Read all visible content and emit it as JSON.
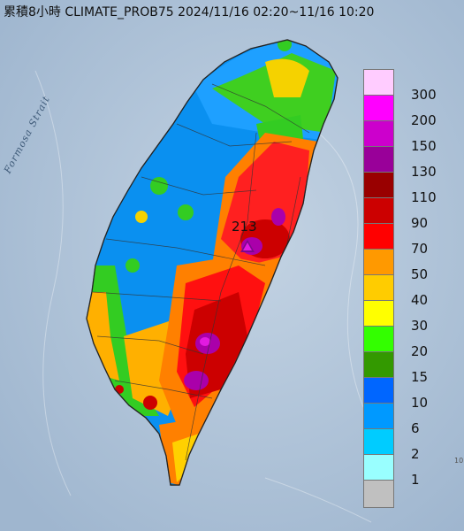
{
  "title": "累積8小時 CLIMATE_PROB75 2024/11/16 02:20~11/16 10:20",
  "strait_label": "Formosa Strait",
  "max_label": "213",
  "corner_mark": "10",
  "legend": [
    {
      "label": "300",
      "color": "#ffccff"
    },
    {
      "label": "200",
      "color": "#ff00ff"
    },
    {
      "label": "150",
      "color": "#cc00cc"
    },
    {
      "label": "130",
      "color": "#990099"
    },
    {
      "label": "110",
      "color": "#990000"
    },
    {
      "label": "90",
      "color": "#cc0000"
    },
    {
      "label": "70",
      "color": "#ff0000"
    },
    {
      "label": "50",
      "color": "#ff9900"
    },
    {
      "label": "40",
      "color": "#ffcc00"
    },
    {
      "label": "30",
      "color": "#ffff00"
    },
    {
      "label": "20",
      "color": "#33ff00"
    },
    {
      "label": "15",
      "color": "#339900"
    },
    {
      "label": "10",
      "color": "#0066ff"
    },
    {
      "label": "6",
      "color": "#0099ff"
    },
    {
      "label": "2",
      "color": "#00ccff"
    },
    {
      "label": "1",
      "color": "#99ffff"
    },
    {
      "label": "",
      "color": "#c0c0c0"
    }
  ]
}
